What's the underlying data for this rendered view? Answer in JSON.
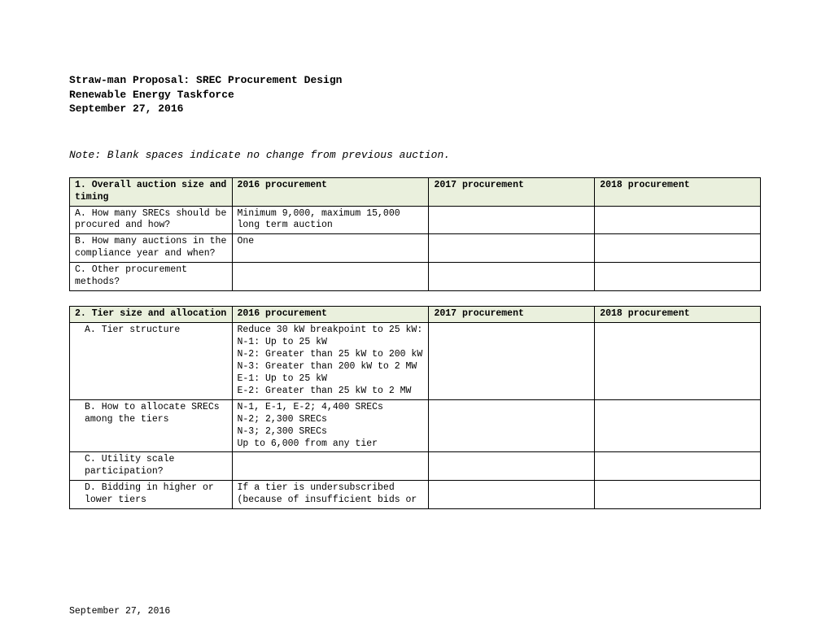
{
  "header": {
    "line1": "Straw-man Proposal: SREC Procurement Design",
    "line2": "Renewable Energy Taskforce",
    "line3": "September 27, 2016"
  },
  "note": "Note: Blank spaces indicate no change from previous auction.",
  "columns": {
    "y2016": "2016 procurement",
    "y2017": "2017 procurement",
    "y2018": "2018 procurement"
  },
  "table1": {
    "title": "1. Overall auction size and timing",
    "rows": [
      {
        "letter": "A.",
        "label": "How many SRECs should be procured and how?",
        "c2016": "Minimum 9,000, maximum 15,000 long term auction",
        "c2017": "",
        "c2018": ""
      },
      {
        "letter": "B.",
        "label": "How many auctions in the compliance year and when?",
        "c2016": "One",
        "c2017": "",
        "c2018": ""
      },
      {
        "letter": "C.",
        "label": "Other procurement methods?",
        "c2016": "",
        "c2017": "",
        "c2018": ""
      }
    ]
  },
  "table2": {
    "title": "2. Tier size and allocation",
    "rows": [
      {
        "letter": "A.",
        "label": "Tier structure",
        "c2016": "Reduce 30 kW breakpoint to 25 kW:\nN-1: Up to 25 kW\nN-2: Greater than 25 kW to 200 kW\nN-3: Greater than 200 kW to 2 MW\nE-1: Up to 25 kW\nE-2: Greater than 25 kW to 2 MW",
        "c2017": "",
        "c2018": ""
      },
      {
        "letter": "B.",
        "label": "How to allocate SRECs among the tiers",
        "c2016": "N-1, E-1, E-2; 4,400 SRECs\nN-2; 2,300 SRECs\nN-3; 2,300 SRECs\nUp to 6,000 from any tier",
        "c2017": "",
        "c2018": ""
      },
      {
        "letter": "C.",
        "label": "Utility scale participation?",
        "c2016": "",
        "c2017": "",
        "c2018": ""
      },
      {
        "letter": "D.",
        "label": "Bidding in higher or lower tiers",
        "c2016": "If a tier is undersubscribed (because of insufficient bids or",
        "c2017": "",
        "c2018": ""
      }
    ]
  },
  "footer": "September 27, 2016"
}
